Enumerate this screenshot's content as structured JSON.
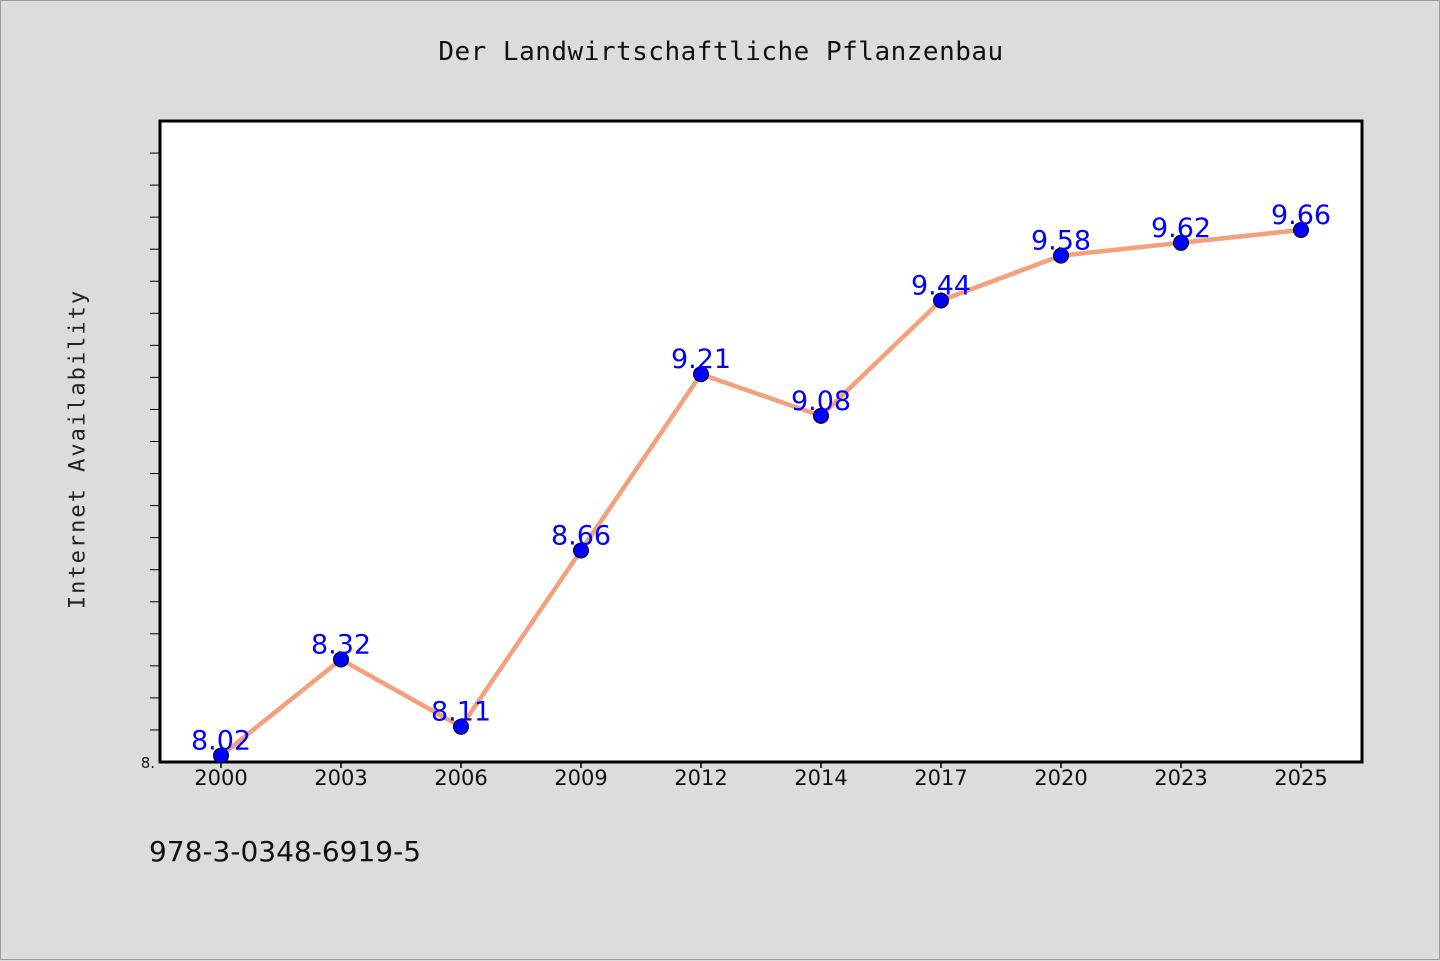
{
  "chart_data": {
    "type": "line",
    "title": "Der Landwirtschaftliche Pflanzenbau",
    "xlabel": "",
    "ylabel": "Internet Availability",
    "categories": [
      "2000",
      "2003",
      "2006",
      "2009",
      "2012",
      "2014",
      "2017",
      "2020",
      "2023",
      "2025"
    ],
    "series": [
      {
        "values": [
          8.02,
          8.32,
          8.11,
          8.66,
          9.21,
          9.08,
          9.44,
          9.58,
          9.62,
          9.66
        ]
      }
    ],
    "ylim": [
      8.0,
      10.0
    ],
    "y_tick_labels": [
      "8."
    ],
    "grid": false,
    "colors": {
      "line": "#f4a07c",
      "marker": "#0000ff",
      "data_label": "#0000ff",
      "plot_bg": "#ffffff",
      "page_bg": "#dcdcdc"
    }
  },
  "footer": {
    "isbn": "978-3-0348-6919-5"
  }
}
